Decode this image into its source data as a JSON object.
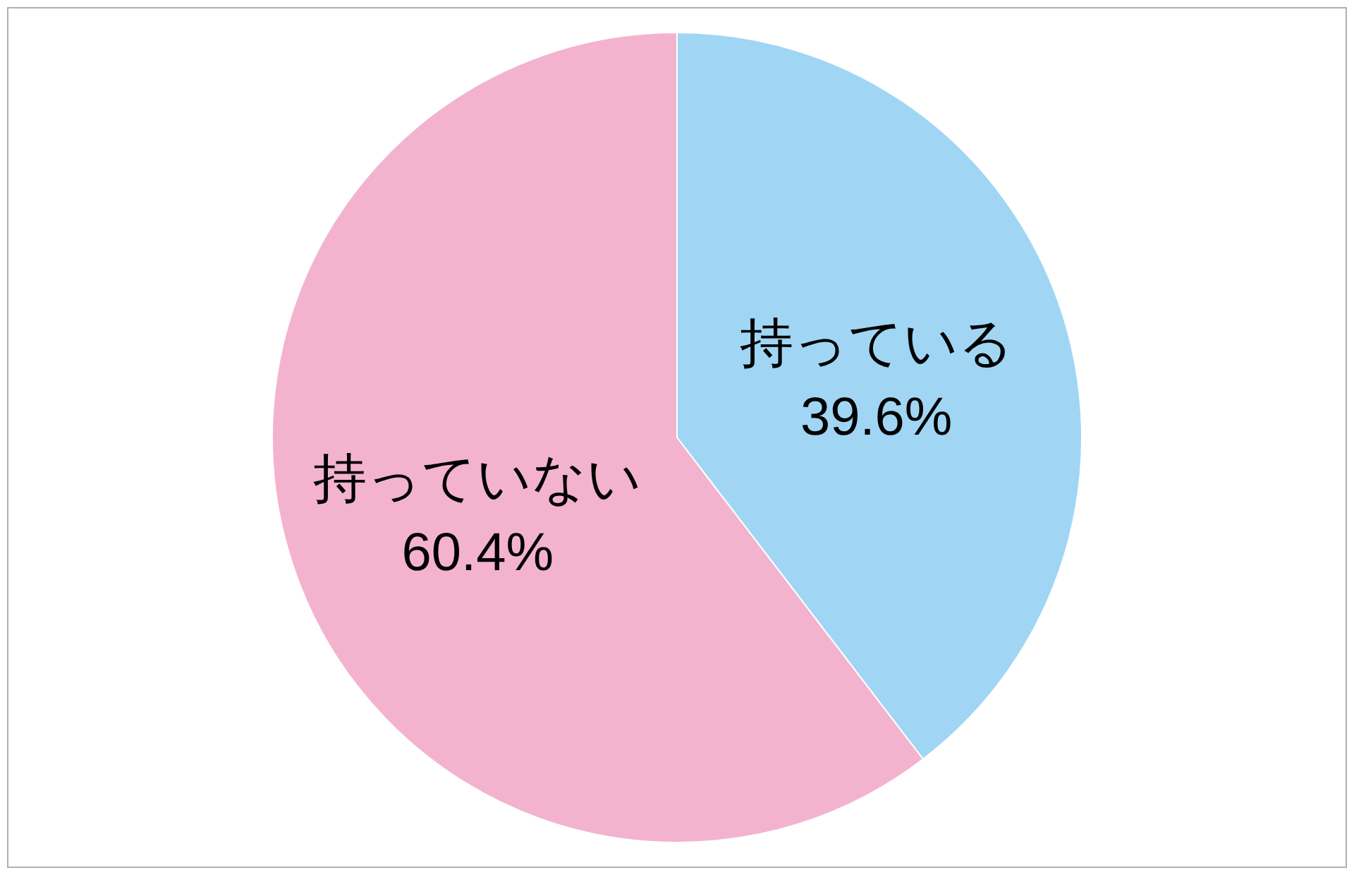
{
  "chart_data": {
    "type": "pie",
    "categories": [
      "持っている",
      "持っていない"
    ],
    "values": [
      39.6,
      60.4
    ],
    "colors": [
      "#a0d6f4",
      "#f3b3cf"
    ],
    "value_labels": [
      "39.6%",
      "60.4%"
    ]
  }
}
